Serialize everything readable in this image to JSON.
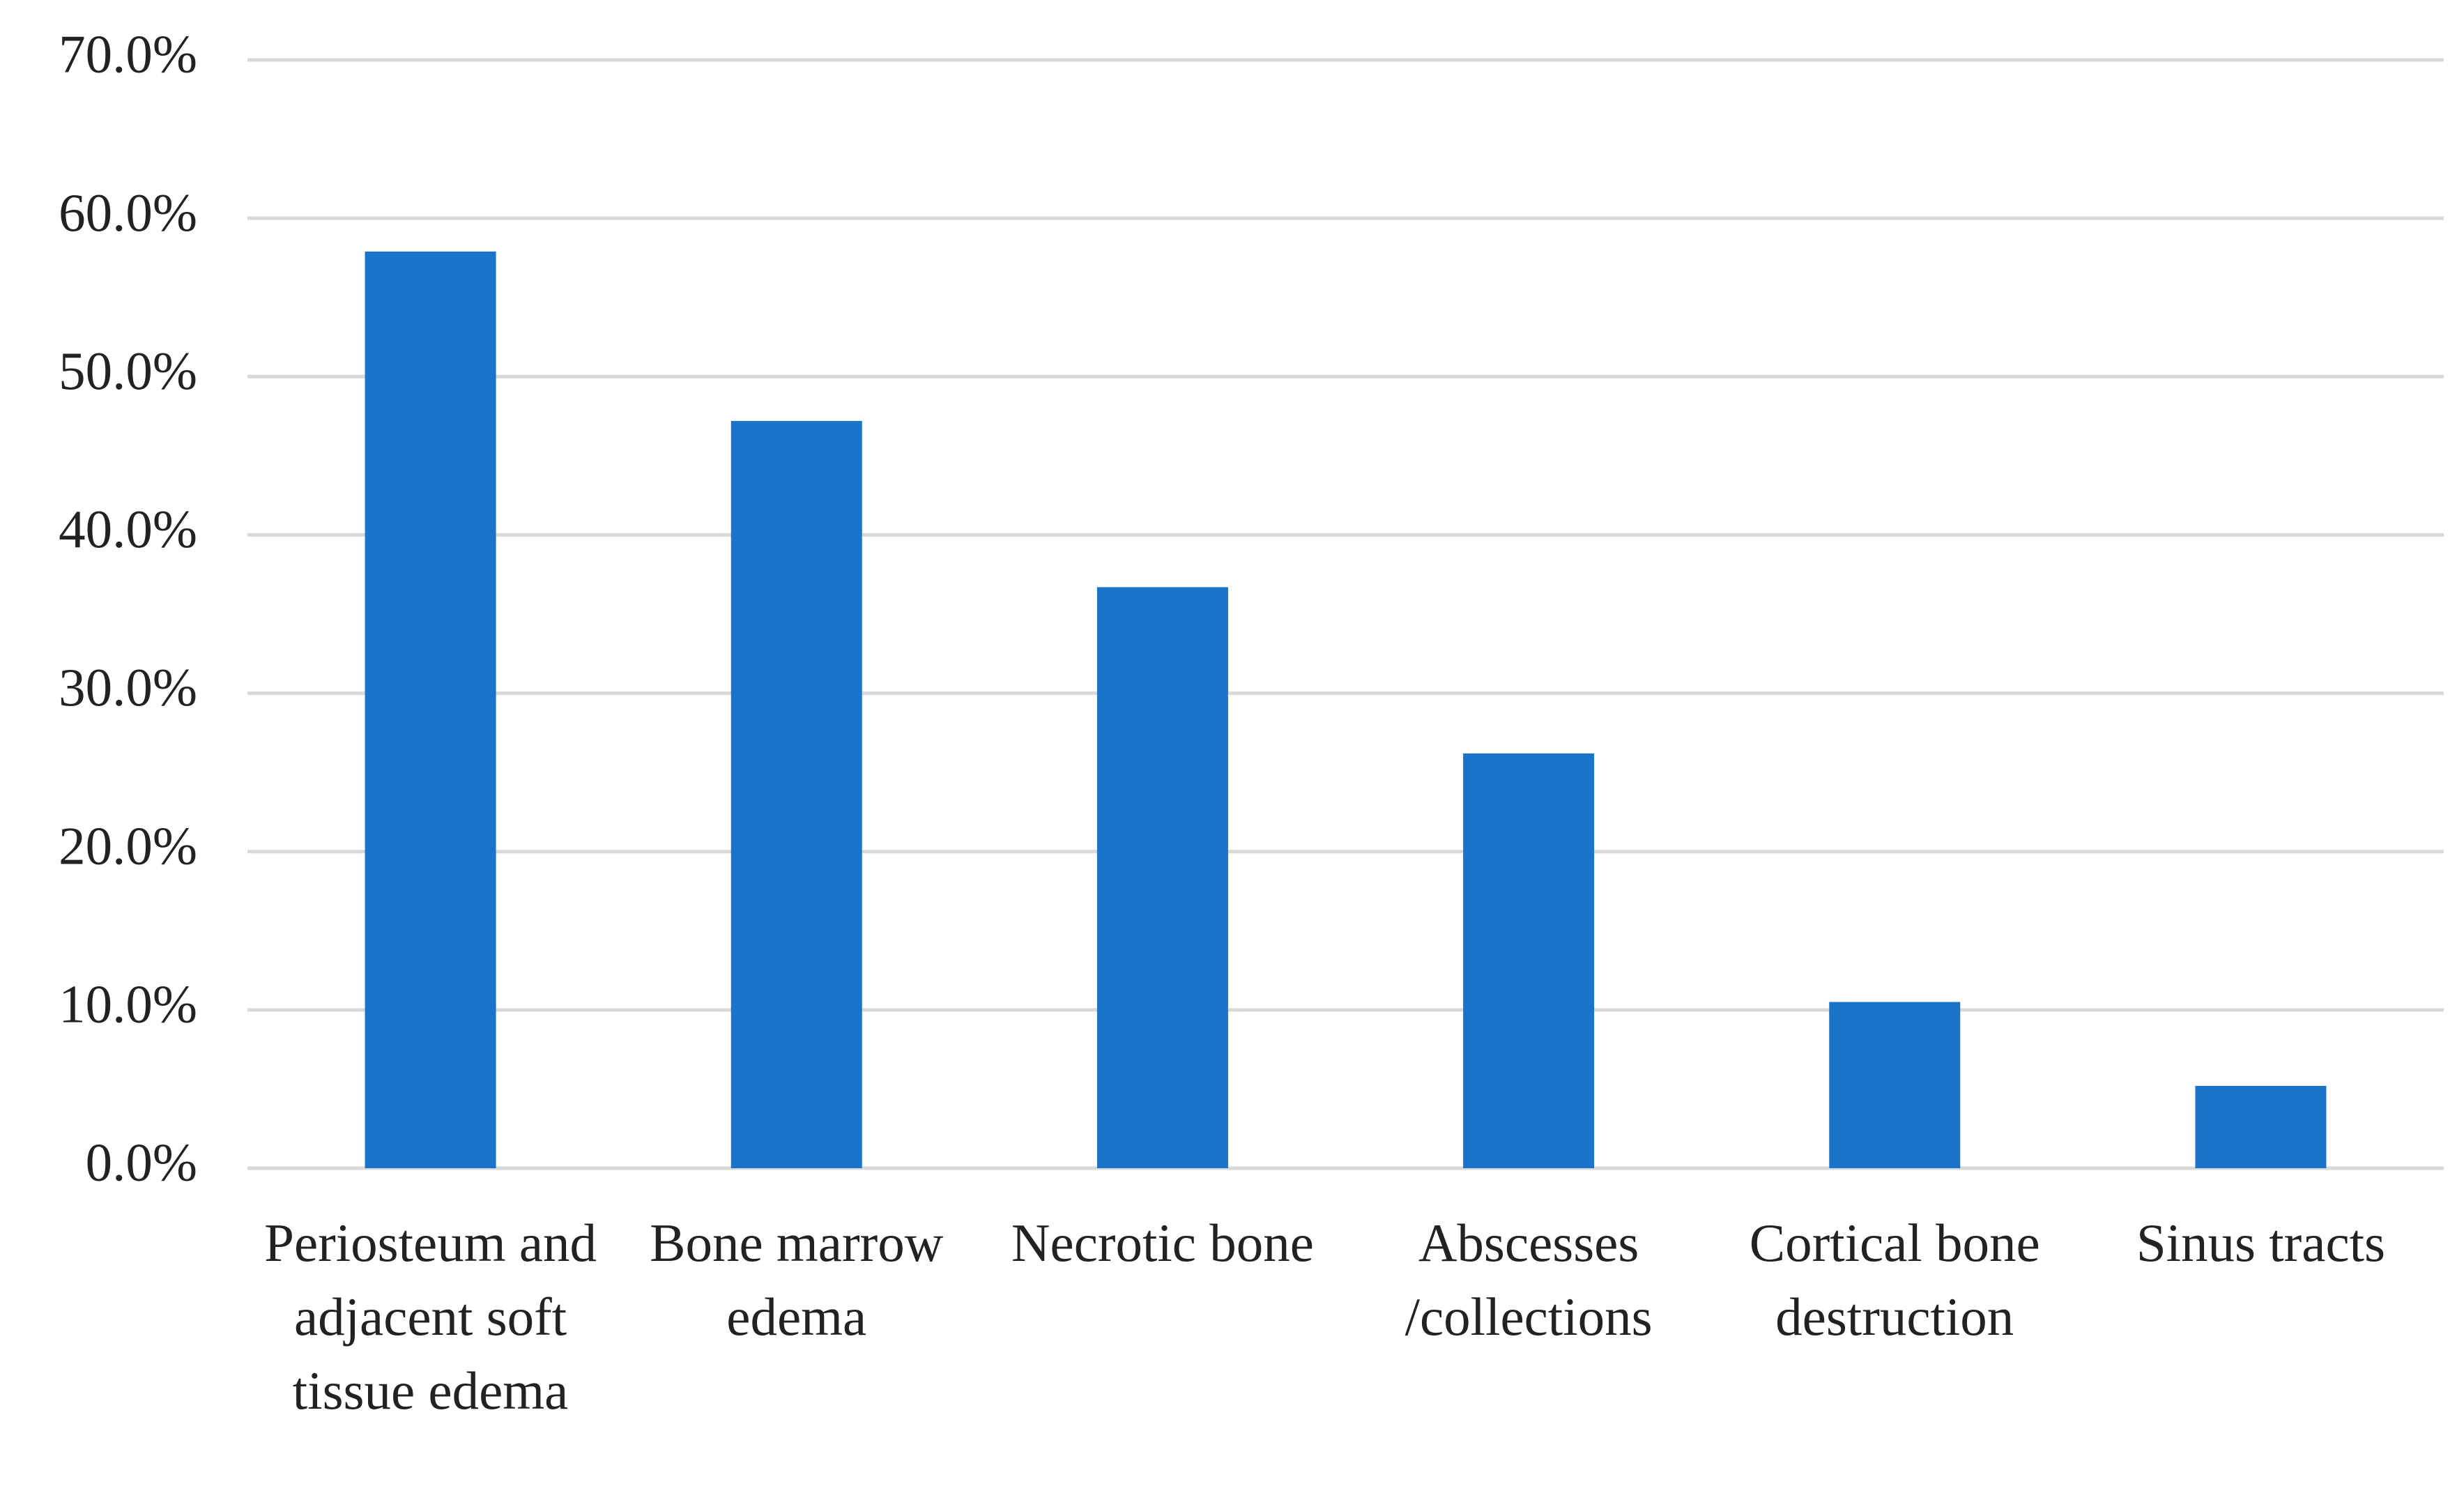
{
  "chart_data": {
    "type": "bar",
    "categories": [
      "Periosteum and adjacent soft tissue edema",
      "Bone marrow edema",
      "Necrotic bone",
      "Abscesses /collections",
      "Cortical bone destruction",
      "Sinus tracts"
    ],
    "values": [
      57.9,
      47.2,
      36.7,
      26.2,
      10.5,
      5.2
    ],
    "color": "#1a74c9",
    "ylim": [
      0,
      70
    ],
    "yticks": [
      {
        "value": 0,
        "label": "0.0%"
      },
      {
        "value": 10,
        "label": "10.0%"
      },
      {
        "value": 20,
        "label": "20.0%"
      },
      {
        "value": 30,
        "label": "30.0%"
      },
      {
        "value": 40,
        "label": "40.0%"
      },
      {
        "value": 50,
        "label": "50.0%"
      },
      {
        "value": 60,
        "label": "60.0%"
      },
      {
        "value": 70,
        "label": "70.0%"
      }
    ],
    "grid": true
  }
}
